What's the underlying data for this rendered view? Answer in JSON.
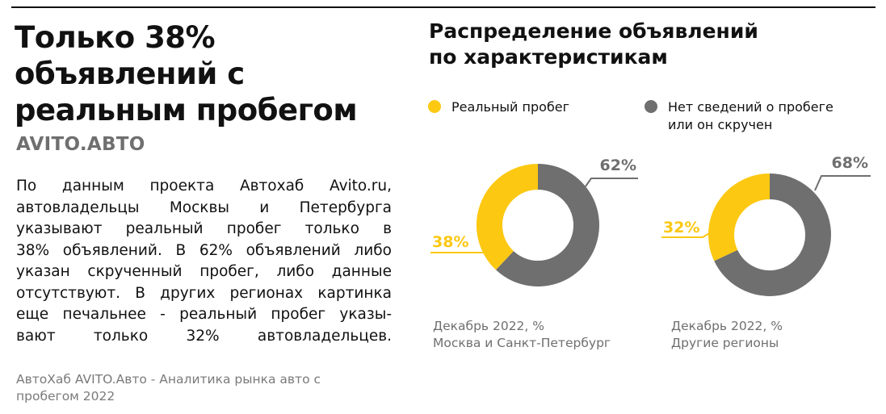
{
  "headline": [
    "Только 38%",
    "объявлений с",
    "реальным пробегом"
  ],
  "brand": "AVITO.АВТО",
  "body_lines": [
    "По данным проекта Автохаб Avito.ru,",
    "автовладельцы Москвы и Петербурга",
    "указывают реальный пробег только в",
    "38% объявлений. В 62% объявлений либо",
    "указан скрученный пробег, либо данные",
    "отсутствуют. В других регионах картинка",
    "еще печальнее - реальный пробег указы-",
    "вают только 32% автовладельцев."
  ],
  "source": [
    "АвтоХаб AVITO.Авто - Аналитика рынка авто с",
    "пробегом 2022"
  ],
  "colors": {
    "real": "#fcc812",
    "other": "#6f6f6f",
    "text": "#111111",
    "muted": "#6f6f6f"
  },
  "chart_data": {
    "type": "pie",
    "variant": "donut",
    "title": "Распределение объявлений по характеристикам",
    "title_lines": [
      "Распределение объявлений",
      "по характеристикам"
    ],
    "legend": [
      {
        "name": "Реальный пробег",
        "lines": [
          "Реальный пробег"
        ],
        "color": "#fcc812"
      },
      {
        "name": "Нет сведений о пробеге или он скручен",
        "lines": [
          "Нет сведений о пробеге",
          "или он скручен"
        ],
        "color": "#6f6f6f"
      }
    ],
    "charts": [
      {
        "caption_lines": [
          "Декабрь 2022, %",
          "Москва и Санкт-Петербург"
        ],
        "slices": [
          {
            "name": "Реальный пробег",
            "value": 38,
            "label": "38%",
            "color": "#fcc812"
          },
          {
            "name": "Нет сведений о пробеге или он скручен",
            "value": 62,
            "label": "62%",
            "color": "#6f6f6f"
          }
        ]
      },
      {
        "caption_lines": [
          "Декабрь 2022, %",
          "Другие регионы"
        ],
        "slices": [
          {
            "name": "Реальный пробег",
            "value": 32,
            "label": "32%",
            "color": "#fcc812"
          },
          {
            "name": "Нет сведений о пробеге или он скручен",
            "value": 68,
            "label": "68%",
            "color": "#6f6f6f"
          }
        ]
      }
    ]
  }
}
